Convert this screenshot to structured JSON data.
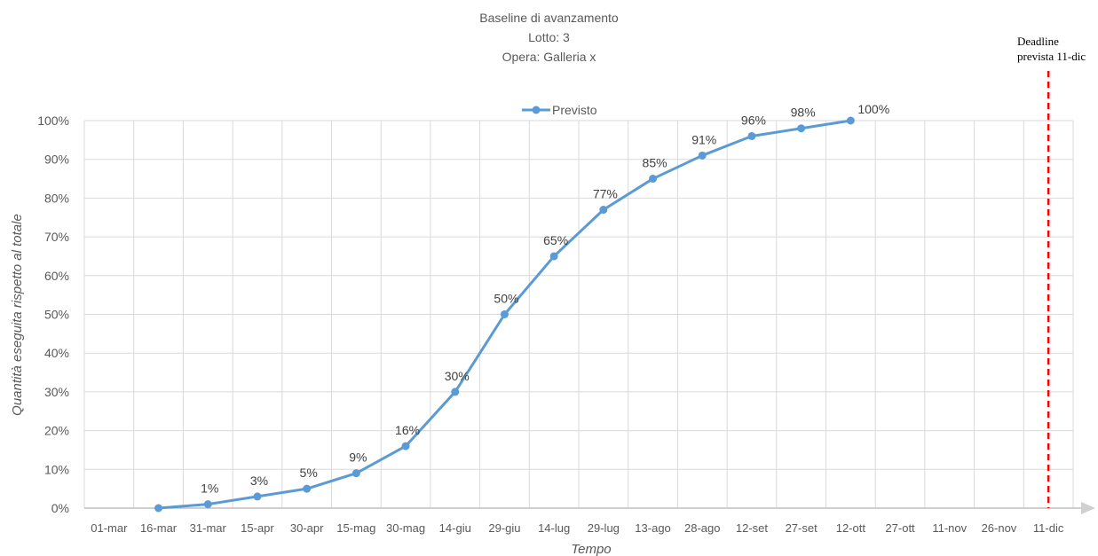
{
  "chart_data": {
    "type": "line",
    "title": [
      "Baseline di avanzamento",
      "Lotto: 3",
      "Opera: Galleria x"
    ],
    "xlabel": "Tempo",
    "ylabel": "Quantità eseguita rispetto al totale",
    "categories": [
      "01-mar",
      "16-mar",
      "31-mar",
      "15-apr",
      "30-apr",
      "15-mag",
      "30-mag",
      "14-giu",
      "29-giu",
      "14-lug",
      "29-lug",
      "13-ago",
      "28-ago",
      "12-set",
      "27-set",
      "12-ott",
      "27-ott",
      "11-nov",
      "26-nov",
      "11-dic"
    ],
    "y_ticks": [
      "0%",
      "10%",
      "20%",
      "30%",
      "40%",
      "50%",
      "60%",
      "70%",
      "80%",
      "90%",
      "100%"
    ],
    "ylim": [
      0,
      100
    ],
    "grid": true,
    "legend": "top-center",
    "series": [
      {
        "name": "Previsto",
        "color": "#5B9BD5",
        "x": [
          "16-mar",
          "31-mar",
          "15-apr",
          "30-apr",
          "15-mag",
          "30-mag",
          "14-giu",
          "29-giu",
          "14-lug",
          "29-lug",
          "13-ago",
          "28-ago",
          "12-set",
          "27-set",
          "12-ott"
        ],
        "values": [
          0,
          1,
          3,
          5,
          9,
          16,
          30,
          50,
          65,
          77,
          85,
          91,
          96,
          98,
          100
        ],
        "labels": [
          "",
          "1%",
          "3%",
          "5%",
          "9%",
          "16%",
          "30%",
          "50%",
          "65%",
          "77%",
          "85%",
          "91%",
          "96%",
          "98%",
          "100%"
        ]
      }
    ],
    "annotations": [
      {
        "x": "11-dic",
        "style": "dashed",
        "color": "#FF0000",
        "text": [
          "Deadline",
          "prevista 11-dic"
        ]
      }
    ]
  }
}
